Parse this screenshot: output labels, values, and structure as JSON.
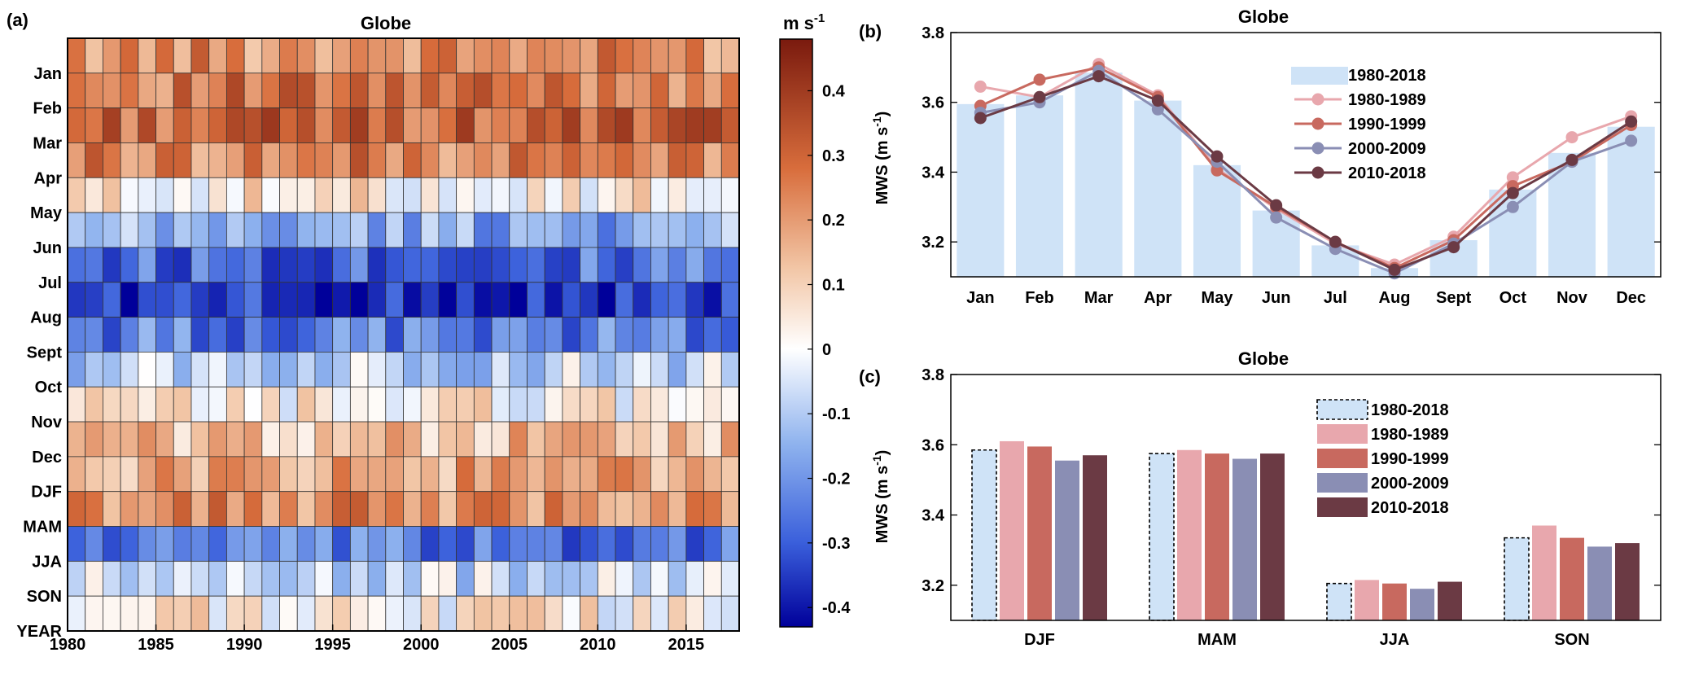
{
  "panels": {
    "a": {
      "label": "(a)",
      "title": "Globe"
    },
    "b": {
      "label": "(b)",
      "title": "Globe"
    },
    "c": {
      "label": "(c)",
      "title": "Globe"
    }
  },
  "colors": {
    "bar_light": "#cfe3f7",
    "series": [
      "#e8a7ad",
      "#c8695f",
      "#8a8eb4",
      "#6b3a44"
    ],
    "cmap": [
      [
        -0.43,
        "#00009a"
      ],
      [
        -0.3,
        "#3a5fdb"
      ],
      [
        -0.15,
        "#8eb2ee"
      ],
      [
        0.0,
        "#ffffff"
      ],
      [
        0.12,
        "#f2c6a6"
      ],
      [
        0.28,
        "#d86d3c"
      ],
      [
        0.48,
        "#7a1a0e"
      ]
    ]
  },
  "chart_data": [
    {
      "type": "heatmap",
      "title": "Globe",
      "colorbar_label": "m s-1",
      "colorbar_unit_base": "m s",
      "colorbar_unit_exp": "-1",
      "colorbar_range": [
        -0.43,
        0.48
      ],
      "colorbar_ticks": [
        "0.4",
        "0.3",
        "0.2",
        "0.1",
        "0",
        "-0.1",
        "-0.2",
        "-0.3",
        "-0.4"
      ],
      "colorbar_tick_values": [
        0.4,
        0.3,
        0.2,
        0.1,
        0,
        -0.1,
        -0.2,
        -0.3,
        -0.4
      ],
      "x_ticks": [
        "1980",
        "1985",
        "1990",
        "1995",
        "2000",
        "2005",
        "2010",
        "2015"
      ],
      "x_tick_values": [
        1980,
        1985,
        1990,
        1995,
        2000,
        2005,
        2010,
        2015
      ],
      "years": [
        1980,
        2018
      ],
      "rows": [
        "Jan",
        "Feb",
        "Mar",
        "Apr",
        "May",
        "Jun",
        "Jul",
        "Aug",
        "Sept",
        "Oct",
        "Nov",
        "Dec",
        "DJF",
        "MAM",
        "JJA",
        "SON",
        "YEAR"
      ],
      "row_means": [
        0.22,
        0.26,
        0.3,
        0.24,
        0.04,
        -0.16,
        -0.27,
        -0.36,
        -0.24,
        -0.08,
        0.03,
        0.13,
        0.18,
        0.22,
        -0.26,
        -0.07,
        0.03
      ]
    },
    {
      "type": "bar+line",
      "title": "Globe",
      "ylabel": "MWS (m s-1)",
      "ylabel_base": "MWS (m s",
      "ylabel_exp": "-1",
      "ylabel_close": ")",
      "ylim": [
        3.1,
        3.8
      ],
      "yticks": [
        "3.2",
        "3.4",
        "3.6",
        "3.8"
      ],
      "ytick_values": [
        3.2,
        3.4,
        3.6,
        3.8
      ],
      "categories": [
        "Jan",
        "Feb",
        "Mar",
        "Apr",
        "May",
        "Jun",
        "Jul",
        "Aug",
        "Sept",
        "Oct",
        "Nov",
        "Dec"
      ],
      "bars": {
        "name": "1980-2018",
        "values": [
          3.595,
          3.62,
          3.685,
          3.605,
          3.42,
          3.29,
          3.19,
          3.125,
          3.205,
          3.35,
          3.455,
          3.53
        ]
      },
      "series": [
        {
          "name": "1980-1989",
          "values": [
            3.645,
            3.615,
            3.71,
            3.62,
            3.41,
            3.295,
            3.195,
            3.135,
            3.215,
            3.385,
            3.5,
            3.56
          ]
        },
        {
          "name": "1990-1999",
          "values": [
            3.59,
            3.665,
            3.7,
            3.615,
            3.405,
            3.3,
            3.2,
            3.125,
            3.205,
            3.36,
            3.43,
            3.535
          ]
        },
        {
          "name": "2000-2009",
          "values": [
            3.57,
            3.6,
            3.69,
            3.58,
            3.43,
            3.27,
            3.18,
            3.11,
            3.195,
            3.3,
            3.43,
            3.49
          ]
        },
        {
          "name": "2010-2018",
          "values": [
            3.555,
            3.615,
            3.675,
            3.605,
            3.445,
            3.305,
            3.2,
            3.12,
            3.185,
            3.34,
            3.435,
            3.545
          ]
        }
      ],
      "legend": [
        "1980-2018",
        "1980-1989",
        "1990-1999",
        "2000-2009",
        "2010-2018"
      ],
      "legend_position": "top-right"
    },
    {
      "type": "bar",
      "title": "Globe",
      "ylabel": "MWS (m s-1)",
      "ylabel_base": "MWS (m s",
      "ylabel_exp": "-1",
      "ylabel_close": ")",
      "ylim": [
        3.1,
        3.8
      ],
      "yticks": [
        "3.2",
        "3.4",
        "3.6",
        "3.8"
      ],
      "ytick_values": [
        3.2,
        3.4,
        3.6,
        3.8
      ],
      "categories": [
        "DJF",
        "MAM",
        "JJA",
        "SON"
      ],
      "series": [
        {
          "name": "1980-2018",
          "values": [
            3.585,
            3.575,
            3.205,
            3.335
          ]
        },
        {
          "name": "1980-1989",
          "values": [
            3.61,
            3.585,
            3.215,
            3.37
          ]
        },
        {
          "name": "1990-1999",
          "values": [
            3.595,
            3.575,
            3.205,
            3.335
          ]
        },
        {
          "name": "2000-2009",
          "values": [
            3.555,
            3.56,
            3.19,
            3.31
          ]
        },
        {
          "name": "2010-2018",
          "values": [
            3.57,
            3.575,
            3.21,
            3.32
          ]
        }
      ],
      "legend": [
        "1980-2018",
        "1980-1989",
        "1990-1999",
        "2000-2009",
        "2010-2018"
      ],
      "legend_position": "top-right"
    }
  ]
}
